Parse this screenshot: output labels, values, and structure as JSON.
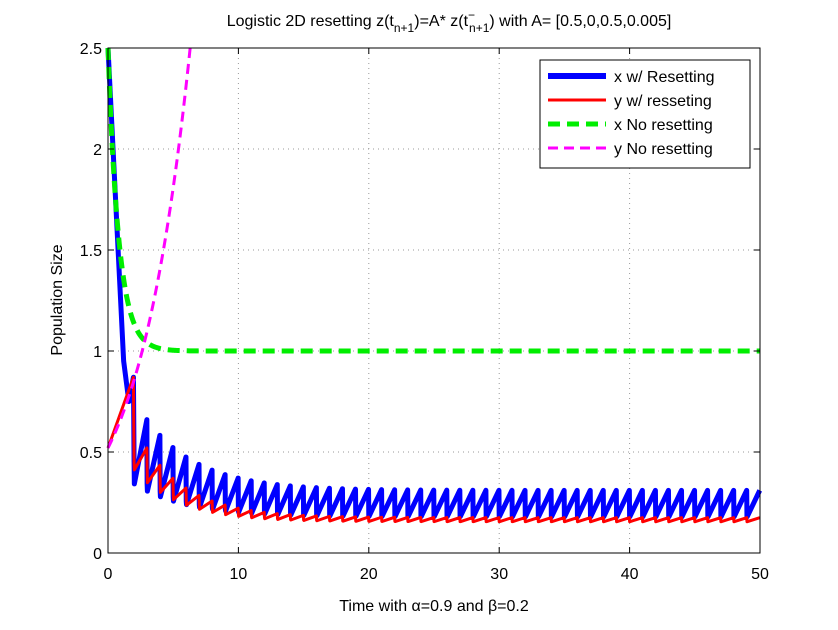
{
  "chart_data": {
    "type": "line",
    "title": "Logistic 2D resetting z(t_{n+1})=A* z(t^-_{n+1}) with A= [0.5,0,0.5,0.005]",
    "title_parts": {
      "pre": "Logistic 2D resetting z(t",
      "sub1": "n+1",
      "mid": ")=A* z(t",
      "sup2": "−",
      "sub2": "n+1",
      "post": ") with A= [0.5,0,0.5,0.005]"
    },
    "xlabel": "Time with α=0.9 and β=0.2",
    "ylabel": "Population Size",
    "xlim": [
      0,
      50
    ],
    "ylim": [
      0,
      2.5
    ],
    "xticks": [
      0,
      10,
      20,
      30,
      40,
      50
    ],
    "yticks": [
      0,
      0.5,
      1,
      1.5,
      2,
      2.5
    ],
    "grid": true,
    "legend_position": "top-right",
    "reset_period": 1,
    "series": [
      {
        "name": "x w/ Resetting",
        "color": "#0000ff",
        "style": "solid",
        "width": "thick",
        "start": 2.5,
        "settle_low": 0.18,
        "settle_high": 0.31,
        "first_peak": 0.87,
        "first_trough": 0.45
      },
      {
        "name": "y w/ resseting",
        "color": "#ff0000",
        "style": "solid",
        "width": "medium",
        "start": 0.52,
        "first_peak": 0.87,
        "settle_low": 0.155,
        "settle_high": 0.175
      },
      {
        "name": "x No resetting",
        "color": "#00ee00",
        "style": "dashed",
        "width": "thick",
        "start": 2.5,
        "steady": 1.0
      },
      {
        "name": "y No resetting",
        "color": "#ff00ff",
        "style": "dashed",
        "width": "medium",
        "start": 0.52,
        "end_x": 6.3,
        "end_y": 2.5
      }
    ]
  }
}
